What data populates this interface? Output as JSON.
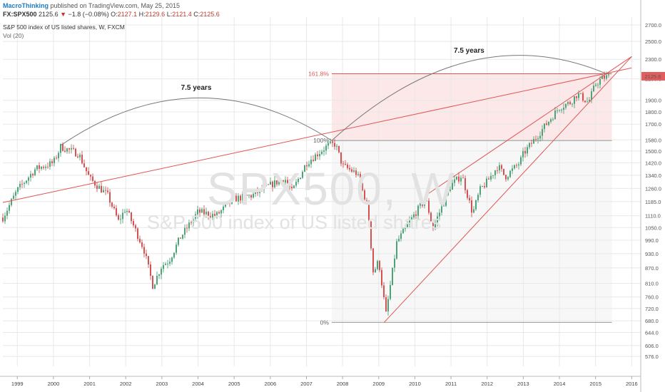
{
  "header": {
    "publisher": "MacroThinking",
    "published_text": "published on TradingView.com, May 25, 2015",
    "symbol": "FX:SPX500",
    "last": "2125.6",
    "change": "−1.8 (−0.08%)",
    "o_label": "O:",
    "o_value": "2127.1",
    "h_label": "H:",
    "h_value": "2129.6",
    "l_label": "L:",
    "l_value": "2121.4",
    "c_label": "C:",
    "c_value": "2125.6",
    "title": "S&P 500 index of US listed shares, W, FXCM",
    "indicator": "Vol (20)"
  },
  "watermark": {
    "symbol": "SPX500, W",
    "description": "S&P 500 index of US listed shares"
  },
  "colors": {
    "up": "#3a9a6a",
    "down": "#d04040",
    "trendline": "#e05555",
    "fib_zone": "#fbe4e4",
    "fib_zone_light": "#f6f6f6",
    "arc": "#777777",
    "grid": "#e8e8e8",
    "price_badge": "#e35d5d"
  },
  "chart_data": {
    "type": "line",
    "title": "S&P 500 index of US listed shares, W, FXCM",
    "x": [
      1998.6,
      1999.0,
      1999.5,
      2000.0,
      2000.2,
      2000.7,
      2001.0,
      2001.5,
      2001.8,
      2002.0,
      2002.5,
      2002.75,
      2003.0,
      2003.2,
      2003.5,
      2004.0,
      2004.5,
      2005.0,
      2005.5,
      2006.0,
      2006.4,
      2006.6,
      2007.0,
      2007.4,
      2007.6,
      2007.8,
      2008.0,
      2008.4,
      2008.7,
      2008.85,
      2009.0,
      2009.2,
      2009.5,
      2010.0,
      2010.3,
      2010.5,
      2010.8,
      2011.0,
      2011.3,
      2011.6,
      2011.8,
      2012.0,
      2012.3,
      2012.5,
      2012.9,
      2013.0,
      2013.5,
      2014.0,
      2014.3,
      2014.5,
      2014.8,
      2015.0,
      2015.2,
      2015.4
    ],
    "values": [
      1100,
      1250,
      1380,
      1420,
      1530,
      1480,
      1320,
      1220,
      1080,
      1150,
      950,
      800,
      880,
      900,
      1000,
      1130,
      1110,
      1200,
      1220,
      1280,
      1320,
      1240,
      1420,
      1500,
      1540,
      1550,
      1400,
      1350,
      1150,
      850,
      900,
      700,
      980,
      1120,
      1200,
      1050,
      1180,
      1280,
      1340,
      1120,
      1250,
      1300,
      1400,
      1330,
      1420,
      1480,
      1650,
      1840,
      1880,
      1960,
      1880,
      2050,
      2110,
      2126
    ],
    "xlabel": "",
    "ylabel": "",
    "x_ticks": [
      "1999",
      "2000",
      "2001",
      "2002",
      "2003",
      "2004",
      "2005",
      "2006",
      "2007",
      "2008",
      "2009",
      "2010",
      "2011",
      "2012",
      "2013",
      "2014",
      "2015",
      "2016"
    ],
    "y_ticks": [
      "2700.0",
      "2500.0",
      "2300.0",
      "2100.0",
      "1900.0",
      "1800.0",
      "1700.0",
      "1580.0",
      "1500.0",
      "1420.0",
      "1340.0",
      "1260.0",
      "1185.0",
      "1110.0",
      "1050.0",
      "990.0",
      "930.0",
      "870.0",
      "810.0",
      "760.0",
      "720.0",
      "680.0",
      "644.0",
      "606.0",
      "576.0"
    ],
    "ylim": [
      550,
      2800
    ],
    "y_scale": "log",
    "last_price_label": "2125.6",
    "fib_levels": [
      {
        "label": "161.8%",
        "value": 2150
      },
      {
        "label": "100%",
        "value": 1575
      },
      {
        "label": "0%",
        "value": 675
      }
    ],
    "arcs": [
      {
        "label": "7.5 years",
        "x_start": 2000.2,
        "x_end": 2007.7
      },
      {
        "label": "7.5 years",
        "x_start": 2007.7,
        "x_end": 2015.3
      }
    ],
    "trendlines": [
      {
        "x": [
          1998.6,
          2016.0
        ],
        "y": [
          1180,
          2210
        ]
      },
      {
        "x": [
          2009.15,
          2016.0
        ],
        "y": [
          675,
          2330
        ]
      },
      {
        "x": [
          2010.3,
          2016.0
        ],
        "y": [
          1220,
          2330
        ]
      }
    ],
    "grid": true
  }
}
